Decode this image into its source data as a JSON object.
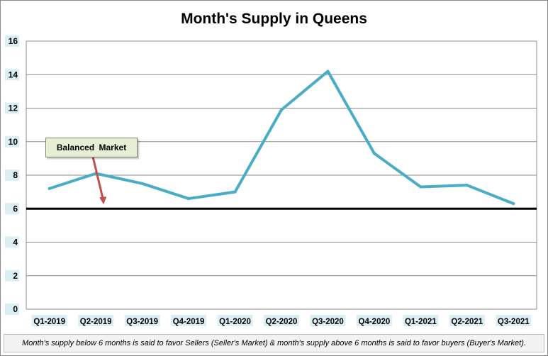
{
  "chart_data": {
    "type": "line",
    "title": "Month's Supply in Queens",
    "categories": [
      "Q1-2019",
      "Q2-2019",
      "Q3-2019",
      "Q4-2019",
      "Q1-2020",
      "Q2-2020",
      "Q3-2020",
      "Q4-2020",
      "Q1-2021",
      "Q2-2021",
      "Q3-2021"
    ],
    "series": [
      {
        "values": [
          7.2,
          8.1,
          7.5,
          6.6,
          7.0,
          11.9,
          14.2,
          9.3,
          7.3,
          7.4,
          6.3
        ],
        "color": "#4bacc6"
      }
    ],
    "reference_line": {
      "value": 6,
      "color": "#000000"
    },
    "ylim": [
      0,
      16
    ],
    "yticks": [
      0,
      2,
      4,
      6,
      8,
      10,
      12,
      14,
      16
    ],
    "grid": true,
    "annotation": {
      "text": "Balanced Market",
      "arrow_color": "#c0504d",
      "box_color": "#e6efd6",
      "target_category": "Q2-2019",
      "target_value": 6
    },
    "footnote": "Month's supply below 6 months is said to favor Sellers (Seller's Market) & month's supply above 6 months is said to favor buyers (Buyer's Market)."
  }
}
